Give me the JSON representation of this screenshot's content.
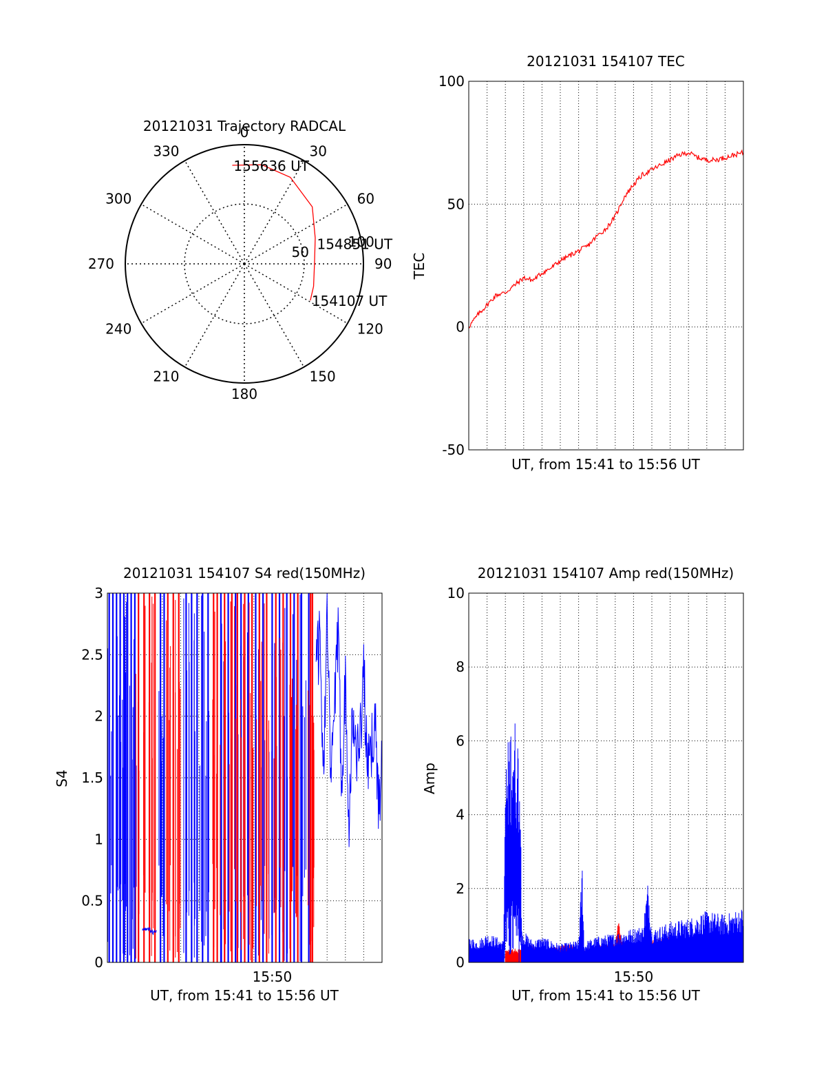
{
  "chart_data": [
    {
      "type": "polar-trajectory",
      "title": "20121031 Trajectory RADCAL",
      "azimuth_labels": [
        "0",
        "30",
        "60",
        "90",
        "120",
        "150",
        "180",
        "210",
        "240",
        "270",
        "300",
        "330"
      ],
      "radial_ticks": [
        {
          "label": "50",
          "elevation": 50
        },
        {
          "label": "100",
          "elevation": 0
        }
      ],
      "trajectory_color": "#ff0000",
      "trajectory": {
        "points": [
          {
            "azimuth": 353,
            "elevation": 15
          },
          {
            "azimuth": 10,
            "elevation": 14
          },
          {
            "azimuth": 28,
            "elevation": 16
          },
          {
            "azimuth": 50,
            "elevation": 23
          },
          {
            "azimuth": 70,
            "elevation": 33
          },
          {
            "azimuth": 90,
            "elevation": 37
          },
          {
            "azimuth": 108,
            "elevation": 35
          },
          {
            "azimuth": 119,
            "elevation": 33
          }
        ],
        "labels": [
          {
            "text": "155636 UT",
            "azimuth": 353,
            "elevation": 15
          },
          {
            "text": "154851 UT",
            "azimuth": 74,
            "elevation": 34
          },
          {
            "text": "154107 UT",
            "azimuth": 119,
            "elevation": 33
          }
        ]
      }
    },
    {
      "type": "line",
      "title": "20121031 154107 TEC",
      "ylabel": "TEC",
      "xlabel": "UT, from 15:41 to 15:56 UT",
      "ylim": [
        -50,
        100
      ],
      "yticks": [
        -50,
        0,
        50,
        100
      ],
      "grid": true,
      "series": [
        {
          "color": "#ff0000",
          "x": [
            0,
            0.5,
            1,
            1.5,
            2,
            2.5,
            3,
            3.5,
            4,
            4.5,
            5,
            5.5,
            6,
            6.5,
            7,
            7.5,
            8,
            8.5,
            9,
            9.5,
            10,
            10.5,
            11,
            11.5,
            12,
            12.5,
            13,
            13.5,
            14,
            14.5,
            15
          ],
          "values": [
            0,
            5,
            9,
            13,
            14,
            17,
            20,
            19,
            22,
            24,
            27,
            29,
            31,
            33,
            37,
            40,
            45,
            53,
            58,
            62,
            64,
            66,
            68,
            70,
            71,
            69,
            68,
            68,
            69,
            70,
            71
          ]
        }
      ]
    },
    {
      "type": "line",
      "title": "20121031 154107 S4 red(150MHz)",
      "ylabel": "S4",
      "xlabel": "UT, from 15:41 to 15:56 UT",
      "ylim": [
        0,
        3
      ],
      "yticks": [
        "0",
        "0.5",
        "1",
        "1.5",
        "2",
        "2.5",
        "3"
      ],
      "xticks": [
        {
          "label": "15:50",
          "x": 9
        }
      ],
      "grid": true,
      "series": [
        {
          "color": "#0000ff",
          "x": [
            11.4,
            11.6,
            11.8,
            12.0,
            12.2,
            12.4,
            12.6,
            12.8,
            13.0,
            13.2,
            13.4,
            13.6,
            13.8,
            14.0,
            14.2,
            14.4,
            14.6,
            14.8,
            15.0
          ],
          "values": [
            2.3,
            2.7,
            1.6,
            2.8,
            1.4,
            2.1,
            2.6,
            1.5,
            2.3,
            1.2,
            2.0,
            1.7,
            1.8,
            2.4,
            1.5,
            1.7,
            2.0,
            1.3,
            1.6
          ]
        },
        {
          "color": "#0000ff",
          "x": [
            1.9,
            2.1,
            2.3,
            2.5,
            2.7
          ],
          "values": [
            0.28,
            0.26,
            0.27,
            0.24,
            0.26
          ]
        }
      ],
      "spikes": [
        {
          "color": "#0000ff",
          "x": [
            0.1,
            0.3,
            0.5,
            0.7,
            0.9,
            1.1,
            1.3,
            1.5,
            2.9,
            3.1,
            4.3,
            4.6,
            4.9,
            5.2,
            5.5,
            6.2,
            6.6,
            7.0,
            7.3,
            7.7,
            8.1,
            8.5,
            9.0,
            9.4,
            9.8,
            10.2,
            10.6,
            11.0
          ],
          "values": [
            3,
            3,
            3,
            3,
            3,
            3,
            3,
            3,
            3,
            3,
            3,
            3,
            3,
            3,
            3,
            3,
            3,
            3,
            3,
            3,
            3,
            3,
            3,
            3,
            3,
            3,
            3,
            3
          ]
        },
        {
          "color": "#ff0000",
          "x": [
            1.7,
            2.0,
            2.3,
            2.6,
            3.3,
            3.6,
            3.9,
            5.8,
            6.0,
            6.4,
            6.8,
            7.1,
            7.5,
            7.9,
            8.3,
            8.7,
            9.2,
            9.6,
            10.0,
            10.4,
            11.1,
            11.2
          ],
          "values": [
            3,
            3,
            3,
            3,
            3,
            3,
            3,
            3,
            3,
            3,
            3,
            3,
            3,
            3,
            3,
            3,
            3,
            3,
            3,
            3,
            3,
            3
          ]
        }
      ]
    },
    {
      "type": "line",
      "title": "20121031 154107 Amp red(150MHz)",
      "ylabel": "Amp",
      "xlabel": "UT, from 15:41 to 15:56 UT",
      "ylim": [
        0,
        10
      ],
      "yticks": [
        0,
        2,
        4,
        6,
        8,
        10
      ],
      "xticks": [
        {
          "label": "15:50",
          "x": 9
        }
      ],
      "grid": true,
      "series": [
        {
          "color": "#0000ff",
          "x": [
            0,
            0.5,
            1,
            1.5,
            1.9,
            2.0,
            2.4,
            2.8,
            2.9,
            3.5,
            4,
            5,
            6,
            6.2,
            6.3,
            6.5,
            7,
            8,
            9.5,
            9.8,
            10,
            11,
            12,
            13,
            14,
            15
          ],
          "values": [
            0.7,
            0.6,
            0.8,
            0.7,
            0.6,
            5.5,
            7.0,
            6.0,
            0.9,
            0.6,
            0.7,
            0.5,
            0.6,
            2.8,
            0.5,
            0.6,
            0.7,
            0.8,
            1.0,
            2.3,
            0.9,
            1.1,
            1.2,
            1.4,
            1.3,
            1.5
          ]
        },
        {
          "color": "#ff0000",
          "x": [
            2.0,
            2.9,
            3.5,
            4.5,
            5.5,
            6.0,
            7.0,
            8.0,
            8.2,
            8.4,
            9.0,
            10.0,
            11.0
          ],
          "values": [
            0.35,
            0.4,
            0.5,
            0.4,
            0.5,
            0.35,
            0.45,
            0.5,
            1.3,
            0.4,
            0.5,
            0.6,
            0.7
          ]
        }
      ]
    }
  ]
}
